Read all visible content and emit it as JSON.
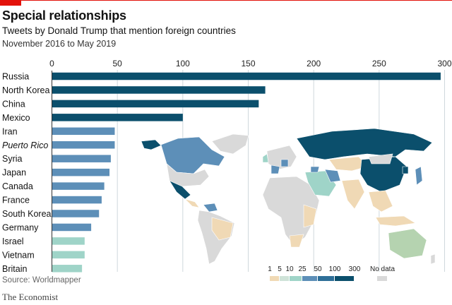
{
  "header": {
    "title": "Special relationships",
    "subtitle": "Tweets by Donald Trump that mention foreign countries",
    "dates": "November 2016 to May 2019"
  },
  "footer": {
    "source": "Source: Worldmapper",
    "brand": "The Economist"
  },
  "colors": {
    "accent": "#e3120b",
    "dark": "#0b4f6c",
    "mid": "#1d6f94",
    "light": "#5d8fb8",
    "pale": "#9fd4c8",
    "nodata": "#d9d9d9",
    "low": "#f0d9b5"
  },
  "legend": {
    "ticks": [
      "1",
      "5",
      "10",
      "25",
      "50",
      "100",
      "300"
    ],
    "bins": [
      {
        "color": "#f0d9b5"
      },
      {
        "color": "#cfe3d8"
      },
      {
        "color": "#9fd4c8"
      },
      {
        "color": "#5d8fb8"
      },
      {
        "color": "#2e6f98"
      },
      {
        "color": "#0b4f6c"
      }
    ],
    "nodata_label": "No data"
  },
  "chart_data": {
    "type": "bar",
    "orientation": "horizontal",
    "categories": [
      "Russia",
      "North Korea",
      "China",
      "Mexico",
      "Iran",
      "Puerto Rico",
      "Syria",
      "Japan",
      "Canada",
      "France",
      "South Korea",
      "Germany",
      "Israel",
      "Vietnam",
      "Britain"
    ],
    "values": [
      297,
      163,
      158,
      100,
      48,
      48,
      45,
      44,
      40,
      38,
      36,
      30,
      25,
      25,
      23
    ],
    "xticks": [
      0,
      50,
      100,
      150,
      200,
      250,
      300
    ],
    "xlim": [
      0,
      300
    ],
    "grid": true,
    "italic_categories": [
      "Puerto Rico"
    ]
  }
}
